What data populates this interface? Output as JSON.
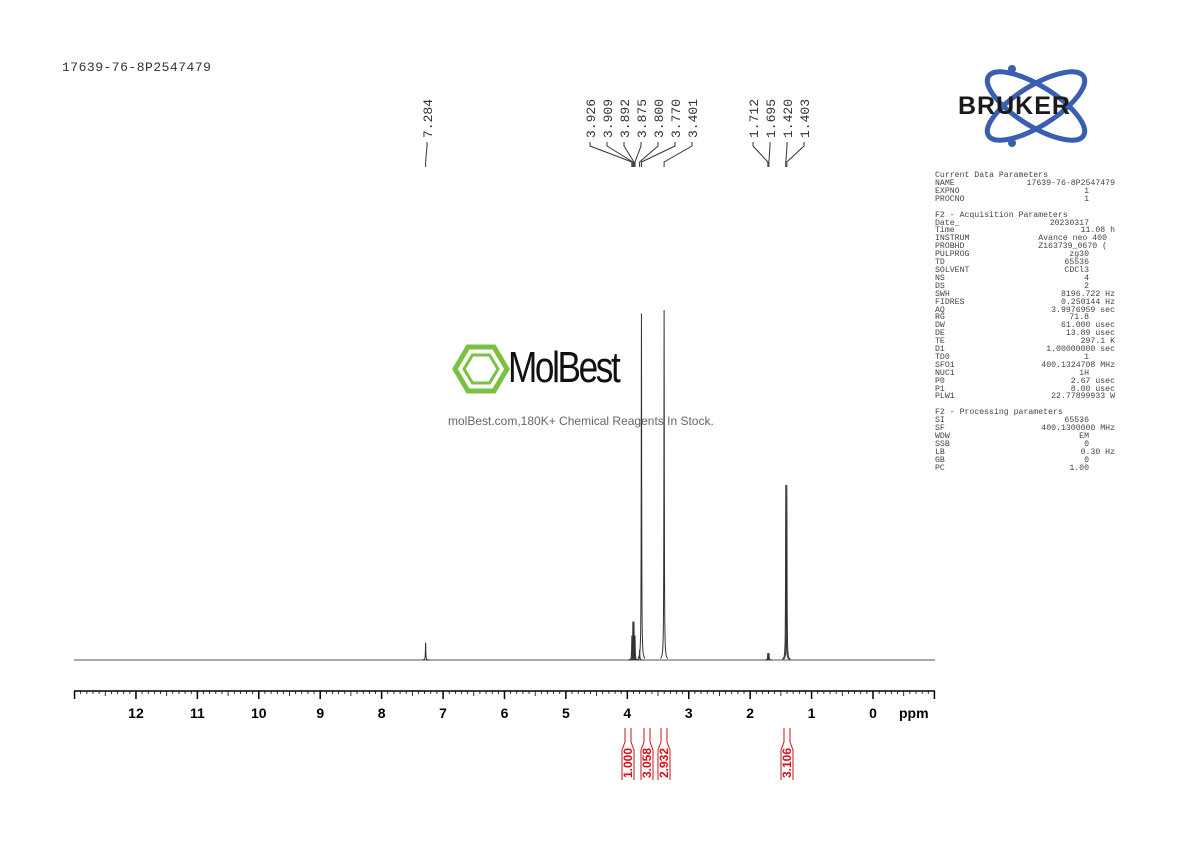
{
  "sample_name": "17639-76-8P2547479",
  "logo": {
    "brand": "BRUKER",
    "color": "#3a5fb0"
  },
  "watermark": {
    "name": "MolBest",
    "caption": "molBest.com,180K+ Chemical Reagents In Stock.",
    "color": "#7ac142"
  },
  "parameters": {
    "sections": [
      {
        "title": "Current Data Parameters",
        "rows": [
          [
            "NAME",
            "17639-76-8P2547479"
          ],
          [
            "EXPNO",
            "1"
          ],
          [
            "PROCNO",
            "1"
          ]
        ]
      },
      {
        "title": "F2 - Acquisition Parameters",
        "rows": [
          [
            "Date_",
            "20230317"
          ],
          [
            "Time",
            "11.08 h"
          ],
          [
            "INSTRUM",
            "Avance neo 400"
          ],
          [
            "PROBHD",
            "Z163739_0670 ("
          ],
          [
            "PULPROG",
            "zg30"
          ],
          [
            "TD",
            "65536"
          ],
          [
            "SOLVENT",
            "CDCl3"
          ],
          [
            "NS",
            "4"
          ],
          [
            "DS",
            "2"
          ],
          [
            "SWH",
            "8196.722 Hz"
          ],
          [
            "FIDRES",
            "0.250144 Hz"
          ],
          [
            "AQ",
            "3.9976959 sec"
          ],
          [
            "RG",
            "71.8"
          ],
          [
            "DW",
            "61.000 usec"
          ],
          [
            "DE",
            "13.89 usec"
          ],
          [
            "TE",
            "297.1 K"
          ],
          [
            "D1",
            "1.00000000 sec"
          ],
          [
            "TD0",
            "1"
          ],
          [
            "SFO1",
            "400.1324708 MHz"
          ],
          [
            "NUC1",
            "1H"
          ],
          [
            "P0",
            "2.67 usec"
          ],
          [
            "P1",
            "8.00 usec"
          ],
          [
            "PLW1",
            "22.77899933 W"
          ]
        ]
      },
      {
        "title": "F2 - Processing parameters",
        "rows": [
          [
            "SI",
            "65536"
          ],
          [
            "SF",
            "400.1300000 MHz"
          ],
          [
            "WDW",
            "EM"
          ],
          [
            "SSB",
            "0"
          ],
          [
            "LB",
            "0.30 Hz"
          ],
          [
            "GB",
            "0"
          ],
          [
            "PC",
            "1.00"
          ]
        ]
      }
    ]
  },
  "chart_data": {
    "type": "line",
    "xlabel": "ppm",
    "xlim": [
      13,
      -1
    ],
    "x_reversed": true,
    "xticks": [
      "12",
      "11",
      "10",
      "9",
      "8",
      "7",
      "6",
      "5",
      "4",
      "3",
      "2",
      "1",
      "0"
    ],
    "peak_labels": [
      "7.284",
      "3.926",
      "3.909",
      "3.892",
      "3.875",
      "3.800",
      "3.770",
      "3.401",
      "1.712",
      "1.695",
      "1.420",
      "1.403"
    ],
    "peaks": [
      {
        "ppm": 7.284,
        "intensity": 0.05
      },
      {
        "ppm": 3.926,
        "intensity": 0.07
      },
      {
        "ppm": 3.909,
        "intensity": 0.11
      },
      {
        "ppm": 3.892,
        "intensity": 0.11
      },
      {
        "ppm": 3.875,
        "intensity": 0.07
      },
      {
        "ppm": 3.8,
        "intensity": 0.03
      },
      {
        "ppm": 3.77,
        "intensity": 0.99
      },
      {
        "ppm": 3.401,
        "intensity": 1.0
      },
      {
        "ppm": 1.712,
        "intensity": 0.02
      },
      {
        "ppm": 1.695,
        "intensity": 0.02
      },
      {
        "ppm": 1.42,
        "intensity": 0.5
      },
      {
        "ppm": 1.403,
        "intensity": 0.5
      }
    ],
    "integrals": [
      {
        "ppm": 3.9,
        "value": "1.000"
      },
      {
        "ppm": 3.77,
        "value": "3.058"
      },
      {
        "ppm": 3.4,
        "value": "2.932"
      },
      {
        "ppm": 1.41,
        "value": "3.106"
      }
    ],
    "integral_color": "#d0101a",
    "grid": false
  }
}
